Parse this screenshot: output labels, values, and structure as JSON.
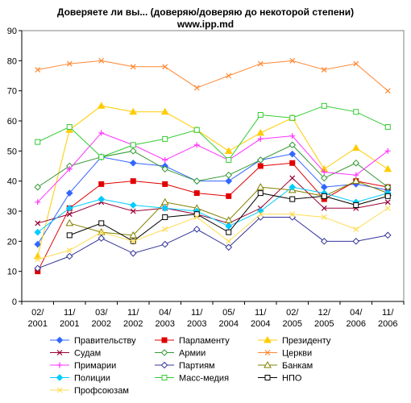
{
  "chart_data": {
    "type": "line",
    "title": "Доверяете ли вы... (доверяю/доверяю до некоторой степени)",
    "subtitle": "www.ipp.md",
    "xlabel": "",
    "ylabel": "",
    "ylim": [
      0,
      90
    ],
    "yticks": [
      0,
      10,
      20,
      30,
      40,
      50,
      60,
      70,
      80,
      90
    ],
    "grid": false,
    "legend_position": "bottom",
    "categories": [
      [
        "02/",
        "2001"
      ],
      [
        "11/",
        "2001"
      ],
      [
        "03/",
        "2002"
      ],
      [
        "11/",
        "2002"
      ],
      [
        "04/",
        "2003"
      ],
      [
        "11/",
        "2003"
      ],
      [
        "05/",
        "2004"
      ],
      [
        "11/",
        "2004"
      ],
      [
        "02/",
        "2005"
      ],
      [
        "12/",
        "2005"
      ],
      [
        "04/",
        "2006"
      ],
      [
        "11/",
        "2006"
      ]
    ],
    "series": [
      {
        "name": "Правительству",
        "color": "#3366ff",
        "marker": "diamond-filled",
        "values": [
          null,
          36,
          48,
          46,
          45,
          40,
          40,
          47,
          49,
          38,
          39,
          37
        ],
        "values_first": 19
      },
      {
        "name": "Парламенту",
        "color": "#e00000",
        "marker": "square-filled",
        "values": [
          10,
          31,
          39,
          40,
          39,
          36,
          35,
          45,
          46,
          34,
          40,
          38
        ]
      },
      {
        "name": "Президенту",
        "color": "#ffcc00",
        "marker": "triangle-filled",
        "values": [
          15,
          57,
          65,
          63,
          63,
          57,
          50,
          56,
          61,
          44,
          51,
          44
        ]
      },
      {
        "name": "Судам",
        "color": "#990033",
        "marker": "x",
        "values": [
          26,
          29,
          33,
          30,
          31,
          29,
          26,
          31,
          41,
          31,
          31,
          33
        ]
      },
      {
        "name": "Армии",
        "color": "#339933",
        "marker": "diamond-open",
        "values": [
          38,
          45,
          48,
          50,
          44,
          40,
          42,
          47,
          52,
          41,
          46,
          38
        ]
      },
      {
        "name": "Церкви",
        "color": "#ff8833",
        "marker": "x",
        "values": [
          77,
          79,
          80,
          78,
          78,
          71,
          75,
          79,
          80,
          77,
          79,
          70
        ]
      },
      {
        "name": "Примарии",
        "color": "#ff33ff",
        "marker": "plus",
        "values": [
          33,
          44,
          56,
          52,
          47,
          52,
          47,
          54,
          55,
          43,
          42,
          50
        ]
      },
      {
        "name": "Партиям",
        "color": "#333399",
        "marker": "diamond-open",
        "values": [
          11,
          15,
          21,
          16,
          19,
          24,
          18,
          28,
          28,
          20,
          20,
          22
        ]
      },
      {
        "name": "Банкам",
        "color": "#808000",
        "marker": "triangle-open",
        "values": [
          null,
          26,
          23,
          22,
          33,
          31,
          27,
          38,
          37,
          35,
          40,
          36
        ]
      },
      {
        "name": "Полиции",
        "color": "#00ccff",
        "marker": "diamond-filled",
        "values": [
          23,
          31,
          34,
          32,
          31,
          30,
          25,
          30,
          38,
          36,
          33,
          36
        ]
      },
      {
        "name": "Масс-медия",
        "color": "#33cc33",
        "marker": "square-open",
        "values": [
          53,
          58,
          48,
          52,
          54,
          57,
          47,
          62,
          61,
          65,
          63,
          58
        ]
      },
      {
        "name": "НПО",
        "color": "#000000",
        "marker": "square-open",
        "values": [
          null,
          22,
          26,
          20,
          28,
          29,
          23,
          36,
          34,
          35,
          32,
          35
        ]
      },
      {
        "name": "Профсоюзам",
        "color": "#ffdd55",
        "marker": "x",
        "values": [
          14,
          17,
          23,
          20,
          24,
          28,
          20,
          29,
          29,
          28,
          24,
          31
        ]
      }
    ]
  }
}
